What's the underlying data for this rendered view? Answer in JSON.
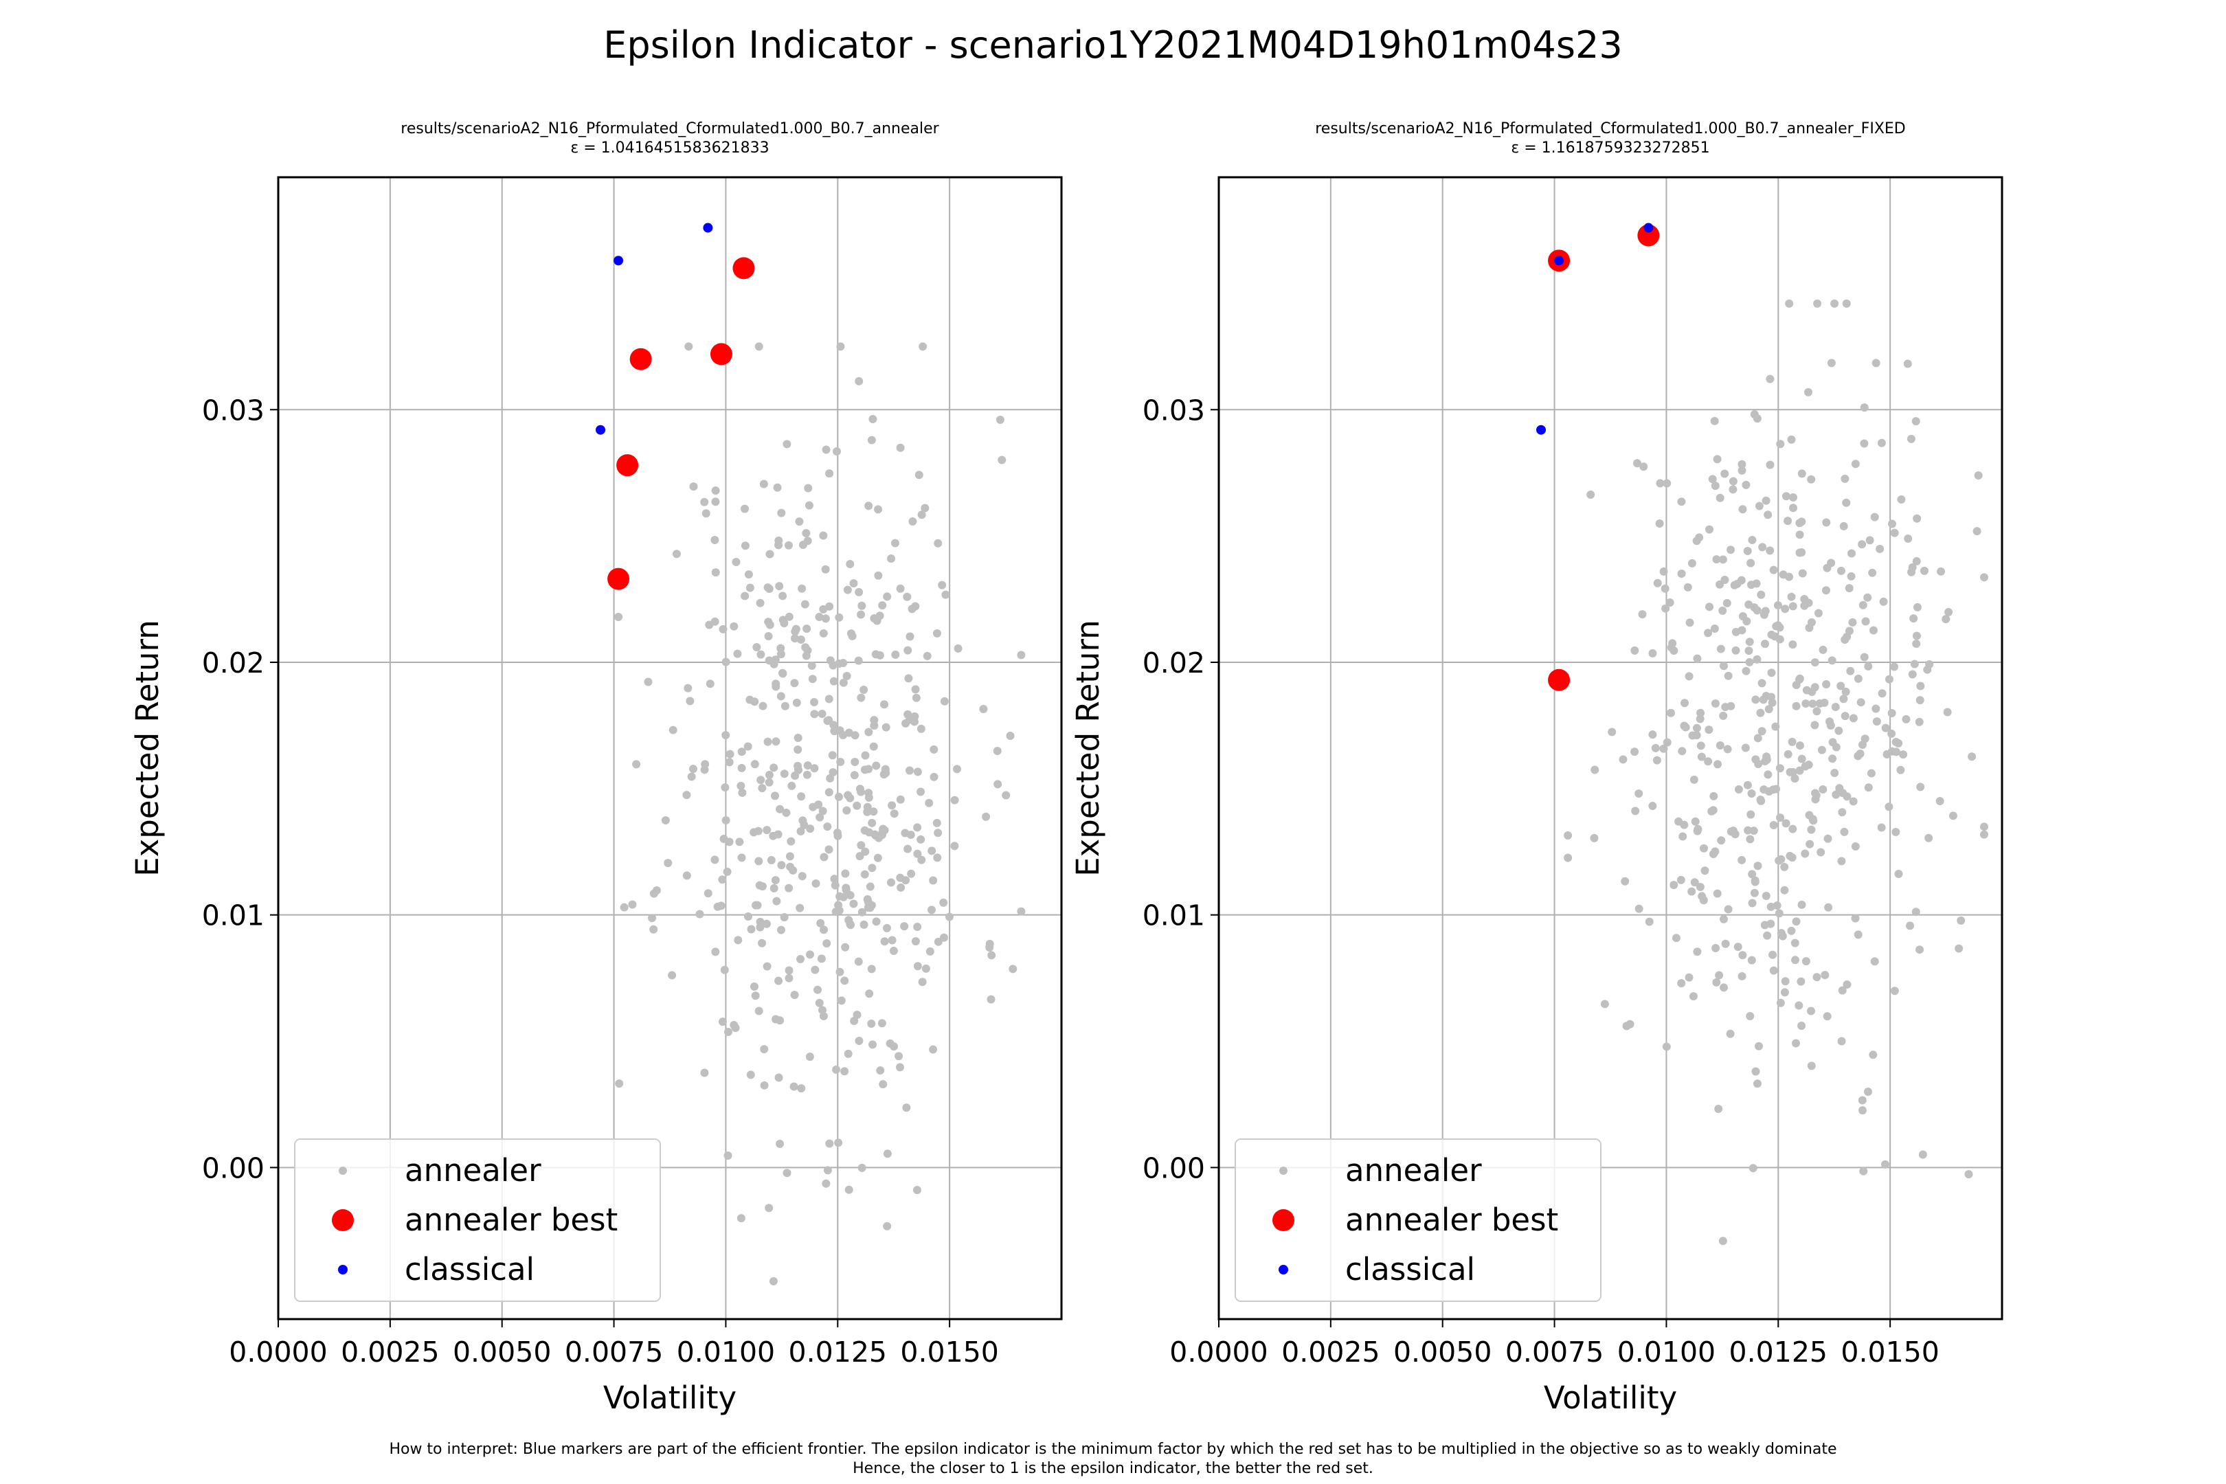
{
  "figure": {
    "suptitle": "Epsilon Indicator - scenario1Y2021M04D19h01m04s23",
    "caption_line1": "How to interpret: Blue markers are part of the efficient frontier. The epsilon indicator is the minimum factor by which the red set has to be multiplied in the objective so as to weakly dominate",
    "caption_line2": "Hence, the closer to 1 is the epsilon indicator, the better the red set."
  },
  "colors": {
    "annealer": "#bfbfbf",
    "annealer_best": "#ff0000",
    "classical": "#0000ff"
  },
  "chart_data": [
    {
      "type": "scatter",
      "title_line1": "results/scenarioA2_N16_Pformulated_Cformulated1.000_B0.7_annealer",
      "title_line2": "ε = 1.0416451583621833",
      "xlabel": "Volatility",
      "ylabel": "Expected Return",
      "xlim": [
        0.0,
        0.0175
      ],
      "ylim": [
        -0.006,
        0.0392
      ],
      "xticks": [
        0.0,
        0.0025,
        0.005,
        0.0075,
        0.01,
        0.0125,
        0.015
      ],
      "xtick_labels": [
        "0.0000",
        "0.0025",
        "0.0050",
        "0.0075",
        "0.0100",
        "0.0125",
        "0.0150"
      ],
      "yticks": [
        0.0,
        0.01,
        0.02,
        0.03
      ],
      "ytick_labels": [
        "0.00",
        "0.01",
        "0.02",
        "0.03"
      ],
      "grid": true,
      "legend_position": "lower-left",
      "legend": [
        "annealer",
        "annealer best",
        "classical"
      ],
      "series": [
        {
          "name": "annealer",
          "random_cloud": {
            "n": 480,
            "seed": 11,
            "x_mean": 0.0122,
            "x_sd": 0.0017,
            "y_mean": 0.0155,
            "y_sd": 0.0071,
            "x_min": 0.0076,
            "x_max": 0.0166,
            "y_min": -0.0045,
            "y_max": 0.0325
          }
        },
        {
          "name": "annealer best",
          "points": [
            [
              0.0104,
              0.0356
            ],
            [
              0.0081,
              0.032
            ],
            [
              0.0099,
              0.0322
            ],
            [
              0.0078,
              0.0278
            ],
            [
              0.0076,
              0.0233
            ]
          ]
        },
        {
          "name": "classical",
          "points": [
            [
              0.0096,
              0.0372
            ],
            [
              0.0076,
              0.0359
            ],
            [
              0.0072,
              0.0292
            ]
          ]
        }
      ]
    },
    {
      "type": "scatter",
      "title_line1": "results/scenarioA2_N16_Pformulated_Cformulated1.000_B0.7_annealer_FIXED",
      "title_line2": "ε = 1.1618759323272851",
      "xlabel": "Volatility",
      "ylabel": "Expected Return",
      "xlim": [
        0.0,
        0.0175
      ],
      "ylim": [
        -0.006,
        0.0392
      ],
      "xticks": [
        0.0,
        0.0025,
        0.005,
        0.0075,
        0.01,
        0.0125,
        0.015
      ],
      "xtick_labels": [
        "0.0000",
        "0.0025",
        "0.0050",
        "0.0075",
        "0.0100",
        "0.0125",
        "0.0150"
      ],
      "yticks": [
        0.0,
        0.01,
        0.02,
        0.03
      ],
      "ytick_labels": [
        "0.00",
        "0.01",
        "0.02",
        "0.03"
      ],
      "grid": true,
      "legend_position": "lower-left",
      "legend": [
        "annealer",
        "annealer best",
        "classical"
      ],
      "series": [
        {
          "name": "annealer",
          "random_cloud": {
            "n": 480,
            "seed": 29,
            "x_mean": 0.0125,
            "x_sd": 0.0018,
            "y_mean": 0.0175,
            "y_sd": 0.0068,
            "x_min": 0.0078,
            "x_max": 0.0171,
            "y_min": -0.0033,
            "y_max": 0.0342
          }
        },
        {
          "name": "annealer best",
          "points": [
            [
              0.0096,
              0.0369
            ],
            [
              0.0076,
              0.0359
            ],
            [
              0.0076,
              0.0193
            ]
          ]
        },
        {
          "name": "classical",
          "points": [
            [
              0.0096,
              0.0372
            ],
            [
              0.0076,
              0.0359
            ],
            [
              0.0072,
              0.0292
            ]
          ]
        }
      ]
    }
  ]
}
